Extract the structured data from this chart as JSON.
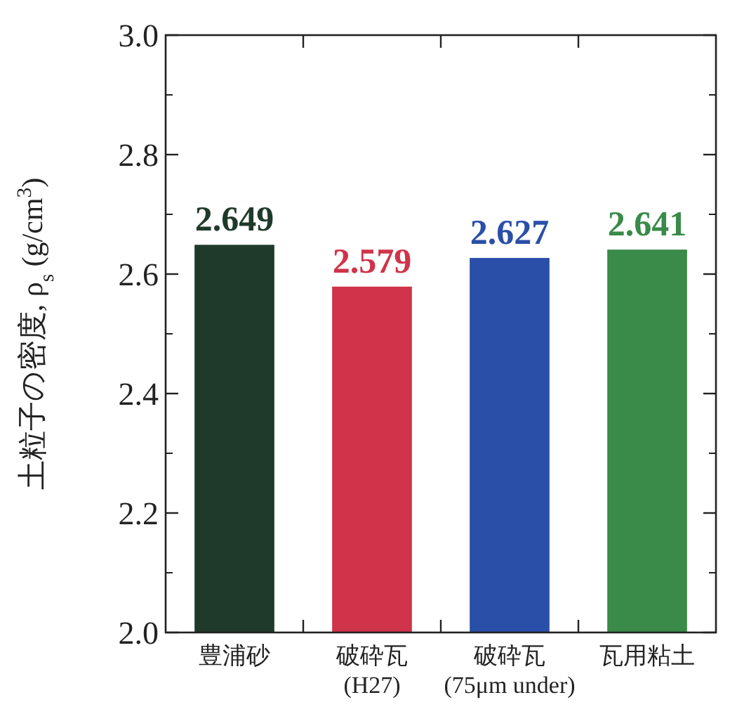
{
  "chart_data": {
    "type": "bar",
    "ylabel": "土粒子の密度, ρ$_{s}$ (g/cm$^{3}$)",
    "categories": [
      "豊浦砂",
      "破砕瓦 (H27)",
      "破砕瓦 (75μm under)",
      "瓦用粘土"
    ],
    "values": [
      2.649,
      2.579,
      2.627,
      2.641
    ],
    "colors": [
      "#1f3a2a",
      "#d0344a",
      "#2a4fa8",
      "#3a8a4a"
    ],
    "ylim": [
      2.0,
      3.0
    ],
    "yticks": [
      {
        "value": 2.0,
        "label": "2.0"
      },
      2.2,
      2.4,
      2.6,
      2.8,
      {
        "value": 3.0,
        "label": "3.0"
      }
    ],
    "data_labels": true
  }
}
